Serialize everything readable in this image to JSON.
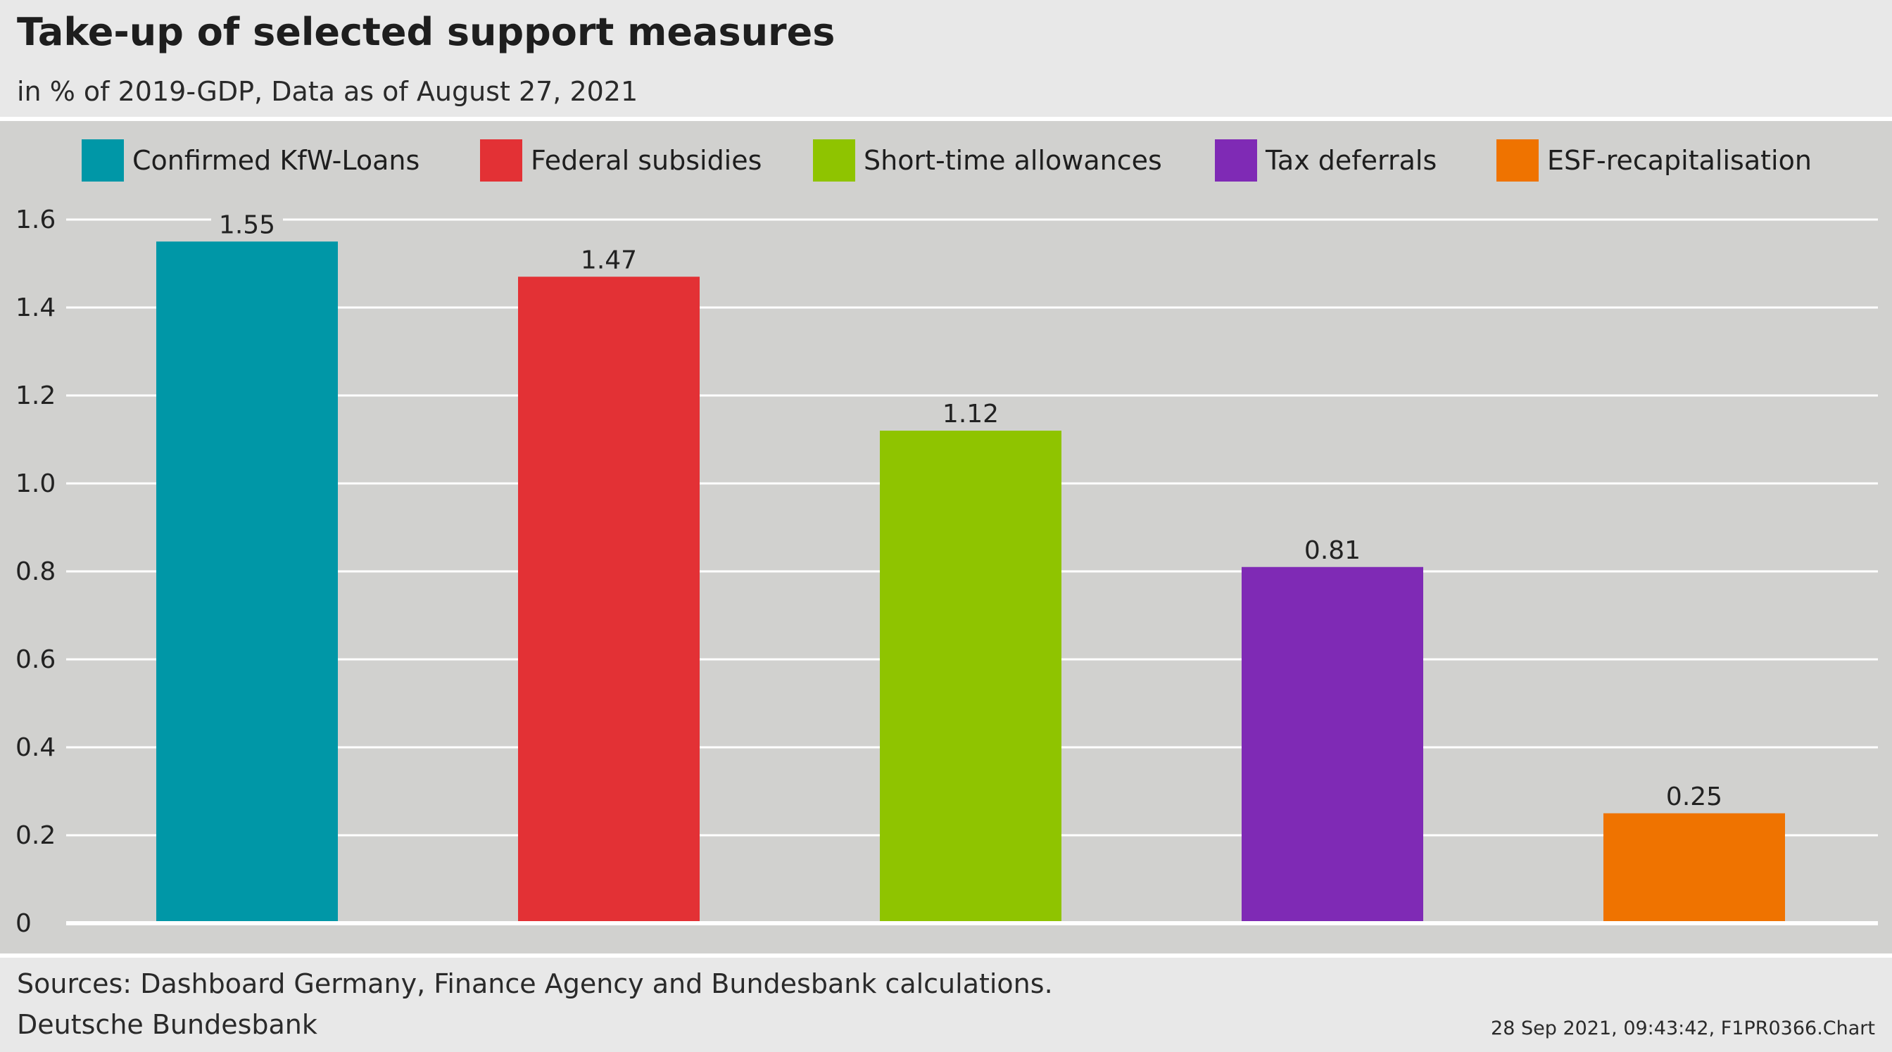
{
  "header": {
    "title": "Take-up of selected support measures",
    "subtitle": "in % of 2019-GDP, Data as of August 27, 2021"
  },
  "footer": {
    "sources": "Sources: Dashboard Germany, Finance Agency and Bundesbank calculations.",
    "organisation": "Deutsche Bundesbank",
    "stamp": "28 Sep 2021, 09:43:42, F1PR0366.Chart"
  },
  "colors": {
    "background": "#e8e8e8",
    "plot_background": "#d1d1cf",
    "gridline": "#ffffff"
  },
  "chart_data": {
    "type": "bar",
    "title": "Take-up of selected support measures",
    "subtitle": "in % of 2019-GDP, Data as of August 27, 2021",
    "xlabel": "",
    "ylabel": "",
    "ylim": [
      0,
      1.6
    ],
    "yticks": [
      0,
      0.2,
      0.4,
      0.6,
      0.8,
      1.0,
      1.2,
      1.4,
      1.6
    ],
    "ytick_labels": [
      "0",
      "0.2",
      "0.4",
      "0.6",
      "0.8",
      "1.0",
      "1.2",
      "1.4",
      "1.6"
    ],
    "grid": true,
    "legend_position": "top",
    "categories": [
      "Confirmed KfW-Loans",
      "Federal subsidies",
      "Short-time allowances",
      "Tax deferrals",
      "ESF-recapitalisation"
    ],
    "values": [
      1.55,
      1.47,
      1.12,
      0.81,
      0.25
    ],
    "value_labels": [
      "1.55",
      "1.47",
      "1.12",
      "0.81",
      "0.25"
    ],
    "colors": [
      "#0097a7",
      "#e33135",
      "#8fc400",
      "#7f2ab5",
      "#ef7300"
    ]
  }
}
